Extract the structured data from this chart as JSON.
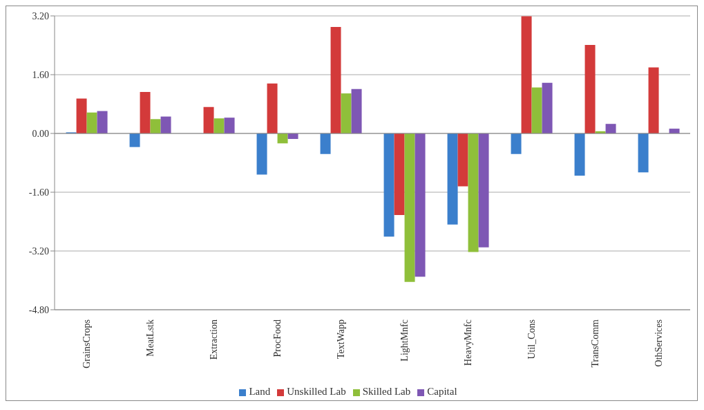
{
  "chart_data": {
    "type": "bar",
    "categories": [
      "GrainsCrops",
      "MeatLstk",
      "Extraction",
      "ProcFood",
      "TextWapp",
      "LightMnfc",
      "HeavyMnfc",
      "Util_Cons",
      "TransComm",
      "OthServices"
    ],
    "series": [
      {
        "name": "Land",
        "color": "#3b7fcc",
        "values": [
          0.03,
          -0.37,
          null,
          -1.12,
          -0.56,
          -2.81,
          -2.48,
          -0.56,
          -1.15,
          -1.06
        ]
      },
      {
        "name": "Unskilled Lab",
        "color": "#d33a3a",
        "values": [
          0.95,
          1.13,
          0.72,
          1.36,
          2.9,
          -2.22,
          -1.44,
          3.19,
          2.41,
          1.8
        ]
      },
      {
        "name": "Skilled Lab",
        "color": "#8fbf3a",
        "values": [
          0.57,
          0.39,
          0.41,
          -0.27,
          1.09,
          -4.04,
          -3.23,
          1.25,
          0.06,
          null
        ]
      },
      {
        "name": "Capital",
        "color": "#7e57b4",
        "values": [
          0.61,
          0.46,
          0.43,
          -0.15,
          1.21,
          -3.9,
          -3.1,
          1.38,
          0.26,
          0.13
        ]
      }
    ],
    "ylim": [
      -4.8,
      3.2
    ],
    "yticks": [
      {
        "value": -4.8,
        "label": "-4.80"
      },
      {
        "value": -3.2,
        "label": "-3.20"
      },
      {
        "value": -1.6,
        "label": "-1.60"
      },
      {
        "value": 0,
        "label": "0.00"
      },
      {
        "value": 1.6,
        "label": "1.60"
      },
      {
        "value": 3.2,
        "label": "3.20"
      }
    ],
    "grid": "y",
    "legend": "bottom"
  }
}
